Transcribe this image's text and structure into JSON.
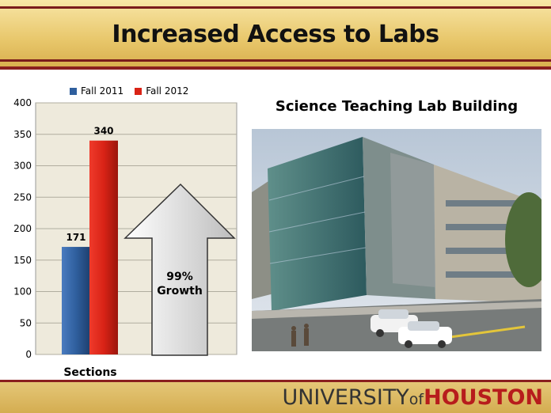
{
  "slide": {
    "title": "Increased Access to Labs",
    "image_caption": "Science Teaching Lab Building",
    "growth_arrow_text": [
      "99%",
      "Growth"
    ],
    "logo": {
      "part1": "UNIVERSITY",
      "part2": "of",
      "part3": "HOUSTON"
    }
  },
  "colors": {
    "fall2011": "#2f5f9e",
    "fall2012": "#d92316",
    "plot_bg": "#eeeadc",
    "title_band": "#e8c76b",
    "accent_red": "#8a1f1f"
  },
  "chart_data": {
    "type": "bar",
    "categories": [
      "Sections"
    ],
    "series": [
      {
        "name": "Fall 2011",
        "values": [
          171
        ]
      },
      {
        "name": "Fall 2012",
        "values": [
          340
        ]
      }
    ],
    "data_labels": [
      "171",
      "340"
    ],
    "title": "",
    "xlabel": "",
    "ylabel": "",
    "ylim": [
      0,
      400
    ],
    "yticks": [
      0,
      50,
      100,
      150,
      200,
      250,
      300,
      350,
      400
    ],
    "grid": true,
    "legend": "top"
  }
}
